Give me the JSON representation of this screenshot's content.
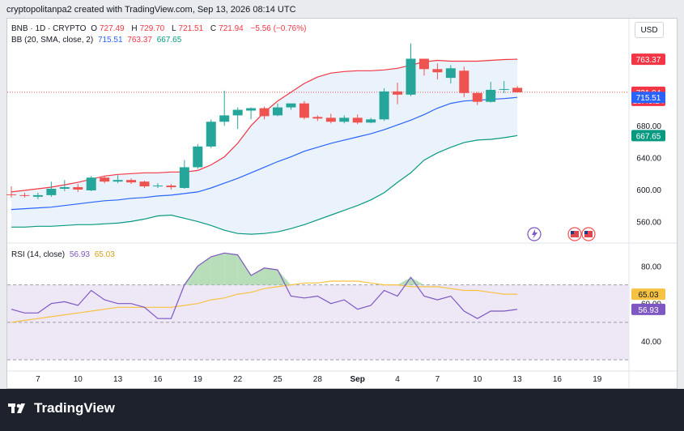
{
  "header": {
    "attribution": "cryptopolitanpa2 created with TradingView.com, Sep 13, 2026 08:14 UTC"
  },
  "legend": {
    "symbol": "BNB · 1D · CRYPTO",
    "open_label": "O",
    "open": "727.49",
    "high_label": "H",
    "high": "729.70",
    "low_label": "L",
    "low": "721.51",
    "close_label": "C",
    "close": "721.94",
    "change": "−5.56 (−0.76%)",
    "bb_label": "BB (20, SMA, close, 2)",
    "bb_basis": "715.51",
    "bb_upper": "763.37",
    "bb_lower": "667.65",
    "rsi_label": "RSI (14, close)",
    "rsi_value": "56.93",
    "rsi_ma": "65.03"
  },
  "currency_button": "USD",
  "footer": {
    "brand": "TradingView"
  },
  "colors": {
    "up": "#26a69a",
    "down": "#ef5350",
    "basis": "#2962ff",
    "upper": "#f23645",
    "lower": "#089981",
    "rsi": "#7e57c2",
    "rsi_ma": "#f7c242",
    "rsi_fill": "#a5d6a7",
    "band_fill": "#eaf3fb",
    "rsi_band": "#ede7f6"
  },
  "chart_data": [
    {
      "type": "candlestick",
      "title": "BNB · 1D · CRYPTO",
      "x_tick_labels": [
        "7",
        "10",
        "13",
        "16",
        "19",
        "22",
        "25",
        "28",
        "Sep",
        "4",
        "7",
        "10",
        "13",
        "16",
        "19"
      ],
      "y_tick_labels": [
        "560.00",
        "600.00",
        "640.00",
        "680.00",
        "720.00"
      ],
      "ylim": [
        535,
        797
      ],
      "price_labels": [
        {
          "label": "763.37",
          "value": 763.37,
          "color": "#f23645"
        },
        {
          "label": "721.94",
          "value": 721.94,
          "color": "#f23645",
          "sub": "15:45:24"
        },
        {
          "label": "715.51",
          "value": 715.51,
          "color": "#2962ff"
        },
        {
          "label": "667.65",
          "value": 667.65,
          "color": "#089981"
        }
      ],
      "candles": [
        {
          "o": 594,
          "h": 604,
          "c": 593,
          "l": 590
        },
        {
          "o": 593,
          "h": 596,
          "c": 592,
          "l": 590
        },
        {
          "o": 591,
          "h": 596,
          "c": 593,
          "l": 588
        },
        {
          "o": 593,
          "h": 610,
          "c": 601,
          "l": 591
        },
        {
          "o": 601,
          "h": 612,
          "c": 603,
          "l": 598
        },
        {
          "o": 603,
          "h": 607,
          "c": 600,
          "l": 597
        },
        {
          "o": 599,
          "h": 617,
          "c": 615,
          "l": 598
        },
        {
          "o": 615,
          "h": 617,
          "c": 610,
          "l": 608
        },
        {
          "o": 610,
          "h": 618,
          "c": 612,
          "l": 608
        },
        {
          "o": 612,
          "h": 614,
          "c": 609,
          "l": 607
        },
        {
          "o": 610,
          "h": 611,
          "c": 604,
          "l": 602
        },
        {
          "o": 604,
          "h": 608,
          "c": 605,
          "l": 602
        },
        {
          "o": 605,
          "h": 607,
          "c": 603,
          "l": 600
        },
        {
          "o": 602,
          "h": 637,
          "c": 628,
          "l": 601
        },
        {
          "o": 628,
          "h": 657,
          "c": 654,
          "l": 626
        },
        {
          "o": 654,
          "h": 688,
          "c": 685,
          "l": 652
        },
        {
          "o": 685,
          "h": 724,
          "c": 693,
          "l": 680
        },
        {
          "o": 693,
          "h": 703,
          "c": 700,
          "l": 676
        },
        {
          "o": 699,
          "h": 703,
          "c": 702,
          "l": 688
        },
        {
          "o": 702,
          "h": 704,
          "c": 692,
          "l": 688
        },
        {
          "o": 693,
          "h": 708,
          "c": 703,
          "l": 692
        },
        {
          "o": 703,
          "h": 706,
          "c": 708,
          "l": 700
        },
        {
          "o": 708,
          "h": 711,
          "c": 690,
          "l": 688
        },
        {
          "o": 691,
          "h": 693,
          "c": 689,
          "l": 686
        },
        {
          "o": 690,
          "h": 695,
          "c": 685,
          "l": 683
        },
        {
          "o": 685,
          "h": 693,
          "c": 690,
          "l": 683
        },
        {
          "o": 690,
          "h": 694,
          "c": 684,
          "l": 682
        },
        {
          "o": 684,
          "h": 690,
          "c": 688,
          "l": 683
        },
        {
          "o": 688,
          "h": 727,
          "c": 723,
          "l": 686
        },
        {
          "o": 723,
          "h": 734,
          "c": 719,
          "l": 707
        },
        {
          "o": 719,
          "h": 783,
          "c": 764,
          "l": 717
        },
        {
          "o": 764,
          "h": 764,
          "c": 751,
          "l": 743
        },
        {
          "o": 751,
          "h": 758,
          "c": 747,
          "l": 738
        },
        {
          "o": 740,
          "h": 756,
          "c": 752,
          "l": 733
        },
        {
          "o": 749,
          "h": 754,
          "c": 721,
          "l": 716
        },
        {
          "o": 721,
          "h": 722,
          "c": 710,
          "l": 706
        },
        {
          "o": 710,
          "h": 735,
          "c": 725,
          "l": 709
        },
        {
          "o": 725,
          "h": 736,
          "c": 726,
          "l": 721
        },
        {
          "o": 727.49,
          "h": 729.7,
          "c": 721.94,
          "l": 721.51
        }
      ],
      "bb_upper": [
        597,
        599,
        601,
        603,
        606,
        609,
        613,
        617,
        619,
        620,
        621,
        621,
        622,
        622,
        624,
        631,
        641,
        658,
        680,
        697,
        711,
        722,
        733,
        741,
        746,
        748,
        749,
        749,
        750,
        752,
        756,
        760,
        762,
        761,
        761,
        761,
        762,
        763,
        763.37
      ],
      "bb_basis": [
        575,
        576,
        577,
        578,
        580,
        582,
        584,
        586,
        587,
        589,
        590,
        592,
        593,
        595,
        597,
        602,
        608,
        614,
        621,
        628,
        635,
        641,
        648,
        653,
        658,
        662,
        666,
        670,
        675,
        681,
        687,
        694,
        702,
        708,
        711,
        712,
        713,
        714,
        715.51
      ],
      "bb_lower": [
        553,
        553,
        554,
        554,
        555,
        556,
        556,
        557,
        558,
        560,
        563,
        567,
        568,
        564,
        560,
        555,
        549,
        545,
        544,
        545,
        547,
        551,
        556,
        562,
        568,
        574,
        580,
        587,
        596,
        609,
        621,
        637,
        646,
        653,
        659,
        662,
        663,
        665,
        667.65
      ]
    },
    {
      "type": "line",
      "title": "RSI (14, close)",
      "y_tick_labels": [
        "40.00",
        "60.00",
        "80.00"
      ],
      "ylim": [
        24,
        91
      ],
      "bands": [
        70,
        50,
        30
      ],
      "series": [
        {
          "name": "RSI",
          "values": [
            57,
            55,
            55,
            60,
            61,
            59,
            67,
            62,
            60,
            60,
            58,
            52,
            52,
            70,
            80,
            85,
            87,
            86,
            75,
            79,
            78,
            64,
            63,
            64,
            60,
            62,
            57,
            59,
            67,
            64,
            74,
            64,
            62,
            64,
            56,
            52,
            56,
            56,
            56.93
          ]
        },
        {
          "name": "RSI MA",
          "values": [
            50,
            51,
            52,
            53,
            54,
            55,
            56,
            57,
            58,
            58,
            58,
            58,
            58,
            59,
            60,
            62,
            63,
            65,
            66,
            68,
            69,
            70,
            71,
            71,
            72,
            72,
            72,
            71,
            70,
            70,
            69,
            69,
            69,
            68,
            67,
            67,
            66,
            65,
            65.03
          ]
        }
      ]
    }
  ]
}
